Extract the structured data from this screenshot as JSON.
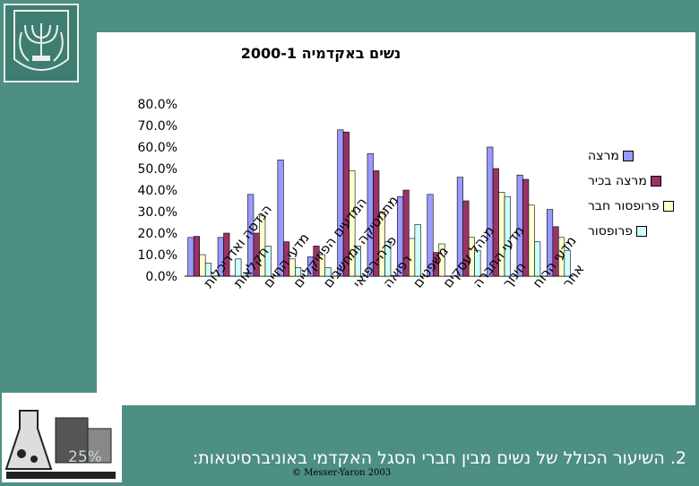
{
  "slide": {
    "caption": "2. השיעור הכולל של נשים מבין חברי הסגל האקדמי באוניברסיטאות:",
    "percent_text": "25%",
    "copyright": "© Messer-Yaron 2003",
    "background_color": "#4d8f83"
  },
  "chart_data": {
    "type": "bar",
    "title": "נשים באקדמיה 2000-1",
    "xlabel": "",
    "ylabel": "",
    "ylim": [
      0,
      80
    ],
    "y_ticks": [
      "80.0%",
      "70.0%",
      "60.0%",
      "50.0%",
      "40.0%",
      "30.0%",
      "20.0%",
      "10.0%",
      "0.0%"
    ],
    "legend_position": "right",
    "grid": false,
    "categories": [
      "הנדסה ואדריכלות",
      "חקלאות",
      "מדעי החיים",
      "המדעים הפיזיקליים",
      "מתמטיקה ומחשבים",
      "פרה-רפואי",
      "רפואה",
      "משפטים",
      "מנהל עסקים",
      "מדעי החברה",
      "חינוך",
      "מדעי הרוח",
      "אחר"
    ],
    "series": [
      {
        "name": "מרצה",
        "color": "#9999ff",
        "values": [
          18,
          18,
          38,
          54,
          9,
          68,
          57,
          37,
          38,
          46,
          60,
          47,
          31
        ]
      },
      {
        "name": "מרצה בכיר",
        "color": "#993366",
        "values": [
          18.5,
          20,
          20,
          16,
          14,
          67,
          49,
          40,
          11,
          35,
          50,
          45,
          23
        ]
      },
      {
        "name": "פרופסור חבר",
        "color": "#ffffcc",
        "values": [
          10,
          0,
          28,
          8,
          10,
          49,
          30,
          17.5,
          15,
          18,
          39,
          33,
          18
        ]
      },
      {
        "name": "פרופסור",
        "color": "#ccffff",
        "values": [
          6,
          8,
          14,
          4,
          4,
          14,
          16,
          24,
          0,
          12,
          37,
          16,
          12
        ]
      }
    ]
  },
  "logo": {
    "icon": "laboratory-flask-logo",
    "text": "..."
  }
}
